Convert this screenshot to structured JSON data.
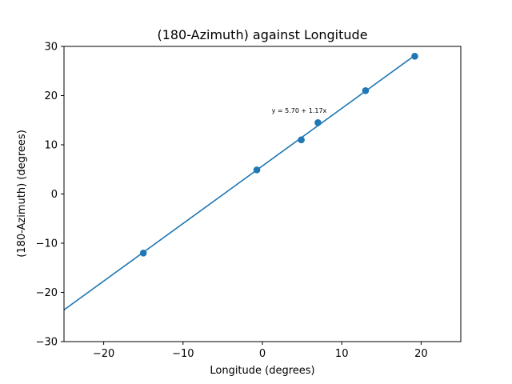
{
  "chart_data": {
    "type": "scatter",
    "title": "(180-Azimuth) against Longitude",
    "xlabel": "Longitude (degrees)",
    "ylabel": "(180-Azimuth) (degrees)",
    "xlim": [
      -25,
      25
    ],
    "ylim": [
      -30,
      30
    ],
    "xticks": [
      -20,
      -10,
      0,
      10,
      20
    ],
    "xtick_labels": [
      "−20",
      "−10",
      "0",
      "10",
      "20"
    ],
    "yticks": [
      -30,
      -20,
      -10,
      0,
      10,
      20,
      30
    ],
    "ytick_labels": [
      "−30",
      "−20",
      "−10",
      "0",
      "10",
      "20",
      "30"
    ],
    "grid": false,
    "series": [
      {
        "type": "scatter",
        "x": [
          -15.0,
          -0.7,
          4.9,
          7.0,
          13.0,
          19.2
        ],
        "y": [
          -12.0,
          4.9,
          11.0,
          14.5,
          21.0,
          28.0
        ]
      }
    ],
    "fit_line": {
      "intercept": 5.7,
      "slope": 1.17
    },
    "annotation": {
      "text": "y = 5.70 + 1.17x",
      "x": 5.0,
      "y": 17.0
    },
    "colors": {
      "series": "#1f77b4",
      "axes": "#000000",
      "background": "#ffffff"
    }
  }
}
